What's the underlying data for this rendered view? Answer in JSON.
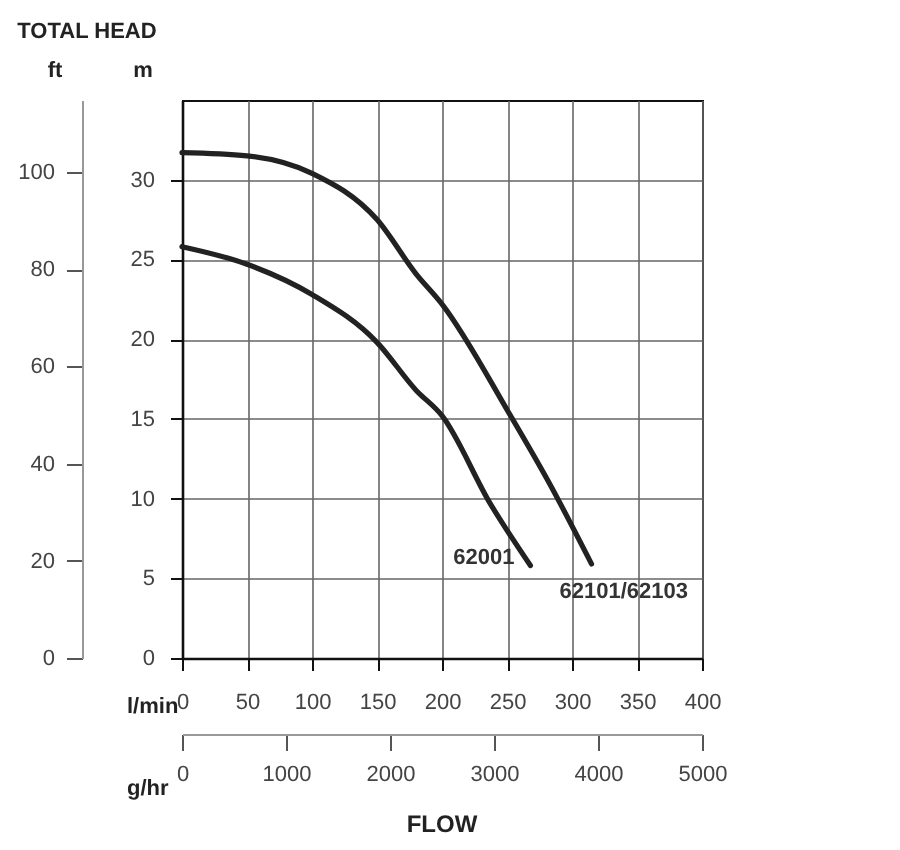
{
  "chart_data": {
    "type": "line",
    "title": "TOTAL HEAD",
    "xlabel": "l/min",
    "ylabel": "m",
    "y2label": "ft",
    "x2label": "g/hr",
    "annotations": [
      "FLOW"
    ],
    "xlim": [
      0,
      400
    ],
    "xticks": [
      0,
      50,
      100,
      150,
      200,
      250,
      300,
      350,
      400
    ],
    "ylim": [
      0,
      35
    ],
    "yticks": [
      0,
      5,
      10,
      15,
      20,
      25,
      30
    ],
    "y2lim": [
      0,
      114.8
    ],
    "y2ticks": [
      0,
      20,
      40,
      60,
      80,
      100
    ],
    "x2lim": [
      0,
      5000
    ],
    "x2ticks": [
      0,
      1000,
      2000,
      3000,
      4000,
      5000
    ],
    "grid": true,
    "legend": false,
    "marker": "none",
    "line_style": "solid",
    "series": [
      {
        "name": "62001",
        "color": "#222222",
        "x": [
          0,
          50,
          100,
          150,
          180,
          200,
          237,
          268
        ],
        "values": [
          25.8,
          24.7,
          22.8,
          19.8,
          16.8,
          15.2,
          9.7,
          5.8
        ]
      },
      {
        "name": "62101/62103",
        "color": "#222222",
        "x": [
          0,
          50,
          100,
          150,
          180,
          200,
          252,
          283,
          315
        ],
        "values": [
          31.7,
          31.5,
          30.4,
          27.5,
          24.1,
          22.2,
          15.3,
          10.9,
          5.9
        ]
      }
    ]
  }
}
